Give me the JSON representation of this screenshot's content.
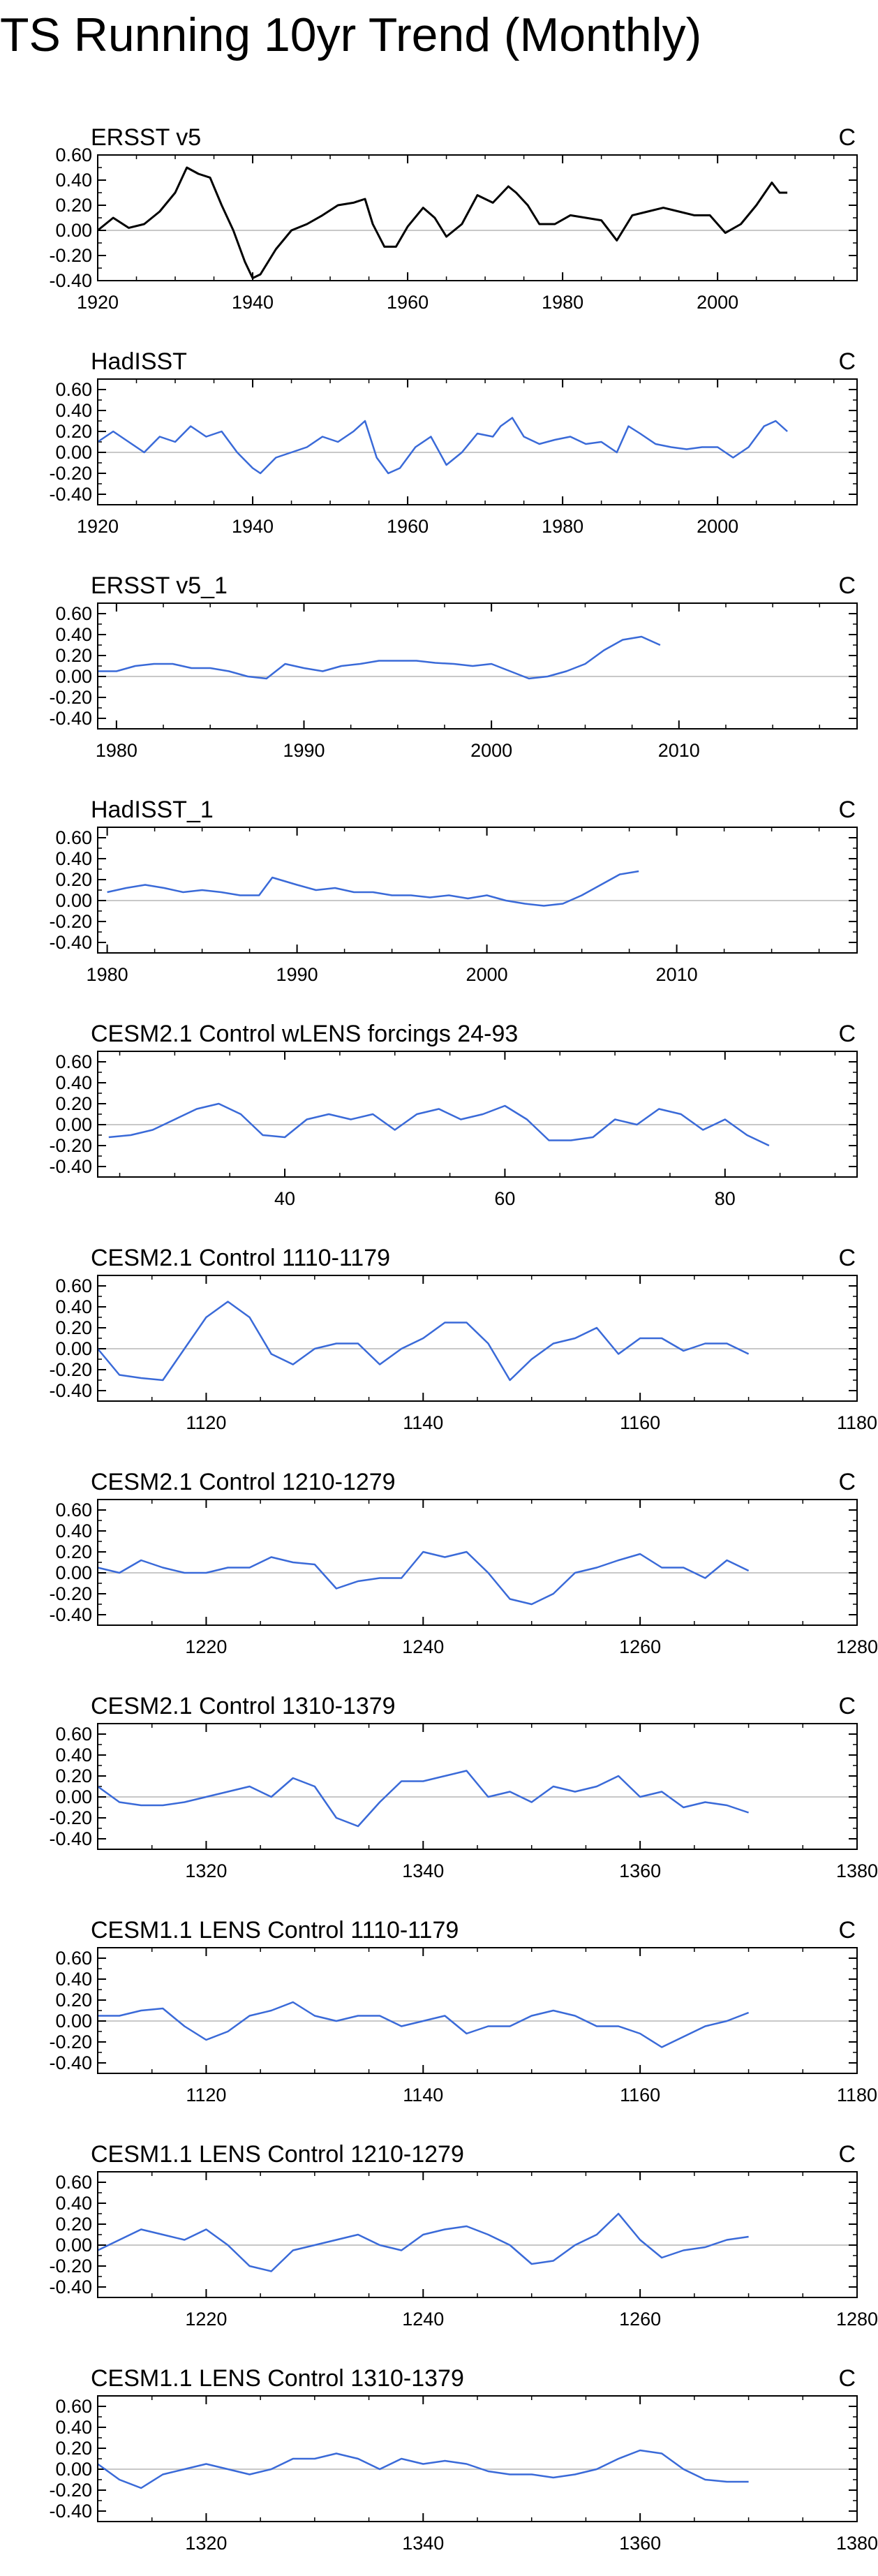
{
  "title": "TS Running 10yr Trend (Monthly)",
  "chart_data": [
    {
      "type": "line",
      "title": "ERSST v5",
      "units": "C",
      "color": "#000000",
      "xlim": [
        1920,
        2018
      ],
      "xticks": [
        1920,
        1940,
        1960,
        1980,
        2000
      ],
      "ylim": [
        -0.4,
        0.6
      ],
      "yticks": [
        -0.4,
        -0.2,
        0.0,
        0.2,
        0.4,
        0.6
      ],
      "ytick_labels": [
        "-0.40",
        "-0.20",
        "0.00",
        "0.20",
        "0.40",
        "0.60"
      ],
      "x": [
        1920,
        1922,
        1924,
        1926,
        1928,
        1930,
        1931.5,
        1933,
        1934.5,
        1936,
        1937.5,
        1939,
        1940,
        1941,
        1943,
        1945,
        1947,
        1949,
        1951,
        1953,
        1954.5,
        1955.5,
        1957,
        1958.5,
        1960,
        1962,
        1963.5,
        1965,
        1967,
        1969,
        1971,
        1973,
        1974,
        1975.5,
        1977,
        1979,
        1981,
        1983,
        1985,
        1987,
        1989,
        1991,
        1993,
        1995,
        1997,
        1999,
        2001,
        2003,
        2005,
        2007,
        2008,
        2009
      ],
      "y": [
        0.0,
        0.1,
        0.02,
        0.05,
        0.15,
        0.3,
        0.5,
        0.45,
        0.42,
        0.2,
        0.0,
        -0.25,
        -0.38,
        -0.35,
        -0.15,
        0.0,
        0.05,
        0.12,
        0.2,
        0.22,
        0.25,
        0.05,
        -0.13,
        -0.13,
        0.03,
        0.18,
        0.1,
        -0.05,
        0.05,
        0.28,
        0.22,
        0.35,
        0.3,
        0.2,
        0.05,
        0.05,
        0.12,
        0.1,
        0.08,
        -0.08,
        0.12,
        0.15,
        0.18,
        0.15,
        0.12,
        0.12,
        -0.02,
        0.05,
        0.2,
        0.38,
        0.3,
        0.3
      ]
    },
    {
      "type": "line",
      "title": "HadISST",
      "units": "C",
      "color": "#3a6ad8",
      "xlim": [
        1920,
        2018
      ],
      "xticks": [
        1920,
        1940,
        1960,
        1980,
        2000
      ],
      "ylim": [
        -0.5,
        0.7
      ],
      "yticks": [
        -0.4,
        -0.2,
        0.0,
        0.2,
        0.4,
        0.6
      ],
      "ytick_labels": [
        "-0.40",
        "-0.20",
        "0.00",
        "0.20",
        "0.40",
        "0.60"
      ],
      "x": [
        1920,
        1922,
        1924,
        1926,
        1928,
        1930,
        1932,
        1934,
        1936,
        1938,
        1940,
        1941,
        1943,
        1945,
        1947,
        1949,
        1951,
        1953,
        1954.5,
        1956,
        1957.5,
        1959,
        1961,
        1963,
        1965,
        1967,
        1969,
        1971,
        1972,
        1973.5,
        1975,
        1977,
        1979,
        1981,
        1983,
        1985,
        1987,
        1988.5,
        1990,
        1992,
        1994,
        1996,
        1998,
        2000,
        2002,
        2004,
        2006,
        2007.5,
        2009
      ],
      "y": [
        0.1,
        0.2,
        0.1,
        0.0,
        0.15,
        0.1,
        0.25,
        0.15,
        0.2,
        0.0,
        -0.15,
        -0.2,
        -0.05,
        0.0,
        0.05,
        0.15,
        0.1,
        0.2,
        0.3,
        -0.05,
        -0.2,
        -0.15,
        0.05,
        0.15,
        -0.12,
        0.0,
        0.18,
        0.15,
        0.25,
        0.33,
        0.15,
        0.08,
        0.12,
        0.15,
        0.08,
        0.1,
        0.0,
        0.25,
        0.18,
        0.08,
        0.05,
        0.03,
        0.05,
        0.05,
        -0.05,
        0.05,
        0.25,
        0.3,
        0.2
      ]
    },
    {
      "type": "line",
      "title": "ERSST v5_1",
      "units": "C",
      "color": "#3a6ad8",
      "xlim": [
        1979,
        2019.5
      ],
      "xticks": [
        1980,
        1990,
        2000,
        2010
      ],
      "ylim": [
        -0.5,
        0.7
      ],
      "yticks": [
        -0.4,
        -0.2,
        0.0,
        0.2,
        0.4,
        0.6
      ],
      "ytick_labels": [
        "-0.40",
        "-0.20",
        "0.00",
        "0.20",
        "0.40",
        "0.60"
      ],
      "x": [
        1979,
        1980,
        1981,
        1982,
        1983,
        1984,
        1985,
        1986,
        1987,
        1988,
        1989,
        1990,
        1991,
        1992,
        1993,
        1994,
        1995,
        1996,
        1997,
        1998,
        1999,
        2000,
        2001,
        2002,
        2003,
        2004,
        2005,
        2006,
        2007,
        2008,
        2009
      ],
      "y": [
        0.05,
        0.05,
        0.1,
        0.12,
        0.12,
        0.08,
        0.08,
        0.05,
        0.0,
        -0.02,
        0.12,
        0.08,
        0.05,
        0.1,
        0.12,
        0.15,
        0.15,
        0.15,
        0.13,
        0.12,
        0.1,
        0.12,
        0.05,
        -0.02,
        0.0,
        0.05,
        0.12,
        0.25,
        0.35,
        0.38,
        0.3
      ]
    },
    {
      "type": "line",
      "title": "HadISST_1",
      "units": "C",
      "color": "#3a6ad8",
      "xlim": [
        1979.5,
        2019.5
      ],
      "xticks": [
        1980,
        1990,
        2000,
        2010
      ],
      "ylim": [
        -0.5,
        0.7
      ],
      "yticks": [
        -0.4,
        -0.2,
        0.0,
        0.2,
        0.4,
        0.6
      ],
      "ytick_labels": [
        "-0.40",
        "-0.20",
        "0.00",
        "0.20",
        "0.40",
        "0.60"
      ],
      "x": [
        1980,
        1981,
        1982,
        1983,
        1984,
        1985,
        1986,
        1987,
        1988,
        1988.7,
        1990,
        1991,
        1992,
        1993,
        1994,
        1995,
        1996,
        1997,
        1998,
        1999,
        2000,
        2001,
        2002,
        2003,
        2004,
        2005,
        2006,
        2007,
        2008
      ],
      "y": [
        0.08,
        0.12,
        0.15,
        0.12,
        0.08,
        0.1,
        0.08,
        0.05,
        0.05,
        0.22,
        0.15,
        0.1,
        0.12,
        0.08,
        0.08,
        0.05,
        0.05,
        0.03,
        0.05,
        0.02,
        0.05,
        0.0,
        -0.03,
        -0.05,
        -0.03,
        0.05,
        0.15,
        0.25,
        0.28
      ]
    },
    {
      "type": "line",
      "title": "CESM2.1 Control wLENS forcings 24-93",
      "units": "C",
      "color": "#3a6ad8",
      "xlim": [
        23,
        92
      ],
      "xticks": [
        40,
        60,
        80
      ],
      "ylim": [
        -0.5,
        0.7
      ],
      "yticks": [
        -0.4,
        -0.2,
        0.0,
        0.2,
        0.4,
        0.6
      ],
      "ytick_labels": [
        "-0.40",
        "-0.20",
        "0.00",
        "0.20",
        "0.40",
        "0.60"
      ],
      "x": [
        24,
        26,
        28,
        30,
        32,
        34,
        36,
        38,
        40,
        42,
        44,
        46,
        48,
        50,
        52,
        54,
        56,
        58,
        60,
        62,
        64,
        66,
        68,
        70,
        72,
        74,
        76,
        78,
        80,
        82,
        84
      ],
      "y": [
        -0.12,
        -0.1,
        -0.05,
        0.05,
        0.15,
        0.2,
        0.1,
        -0.1,
        -0.12,
        0.05,
        0.1,
        0.05,
        0.1,
        -0.05,
        0.1,
        0.15,
        0.05,
        0.1,
        0.18,
        0.05,
        -0.15,
        -0.15,
        -0.12,
        0.05,
        0.0,
        0.15,
        0.1,
        -0.05,
        0.05,
        -0.1,
        -0.2
      ]
    },
    {
      "type": "line",
      "title": "CESM2.1 Control 1110-1179",
      "units": "C",
      "color": "#3a6ad8",
      "xlim": [
        1110,
        1180
      ],
      "xticks": [
        1120,
        1140,
        1160,
        1180
      ],
      "ylim": [
        -0.5,
        0.7
      ],
      "yticks": [
        -0.4,
        -0.2,
        0.0,
        0.2,
        0.4,
        0.6
      ],
      "ytick_labels": [
        "-0.40",
        "-0.20",
        "0.00",
        "0.20",
        "0.40",
        "0.60"
      ],
      "x": [
        1110,
        1112,
        1114,
        1116,
        1118,
        1120,
        1122,
        1124,
        1126,
        1128,
        1130,
        1132,
        1134,
        1136,
        1138,
        1140,
        1142,
        1144,
        1146,
        1148,
        1150,
        1152,
        1154,
        1156,
        1158,
        1160,
        1162,
        1164,
        1166,
        1168,
        1170
      ],
      "y": [
        0.0,
        -0.25,
        -0.28,
        -0.3,
        0.0,
        0.3,
        0.45,
        0.3,
        -0.05,
        -0.15,
        0.0,
        0.05,
        0.05,
        -0.15,
        0.0,
        0.1,
        0.25,
        0.25,
        0.05,
        -0.3,
        -0.1,
        0.05,
        0.1,
        0.2,
        -0.05,
        0.1,
        0.1,
        -0.02,
        0.05,
        0.05,
        -0.05
      ]
    },
    {
      "type": "line",
      "title": "CESM2.1 Control 1210-1279",
      "units": "C",
      "color": "#3a6ad8",
      "xlim": [
        1210,
        1280
      ],
      "xticks": [
        1220,
        1240,
        1260,
        1280
      ],
      "ylim": [
        -0.5,
        0.7
      ],
      "yticks": [
        -0.4,
        -0.2,
        0.0,
        0.2,
        0.4,
        0.6
      ],
      "ytick_labels": [
        "-0.40",
        "-0.20",
        "0.00",
        "0.20",
        "0.40",
        "0.60"
      ],
      "x": [
        1210,
        1212,
        1214,
        1216,
        1218,
        1220,
        1222,
        1224,
        1226,
        1228,
        1230,
        1232,
        1234,
        1236,
        1238,
        1240,
        1242,
        1244,
        1246,
        1248,
        1250,
        1252,
        1254,
        1256,
        1258,
        1260,
        1262,
        1264,
        1266,
        1268,
        1270
      ],
      "y": [
        0.05,
        0.0,
        0.12,
        0.05,
        0.0,
        0.0,
        0.05,
        0.05,
        0.15,
        0.1,
        0.08,
        -0.15,
        -0.08,
        -0.05,
        -0.05,
        0.2,
        0.15,
        0.2,
        0.0,
        -0.25,
        -0.3,
        -0.2,
        0.0,
        0.05,
        0.12,
        0.18,
        0.05,
        0.05,
        -0.05,
        0.12,
        0.02
      ]
    },
    {
      "type": "line",
      "title": "CESM2.1 Control 1310-1379",
      "units": "C",
      "color": "#3a6ad8",
      "xlim": [
        1310,
        1380
      ],
      "xticks": [
        1320,
        1340,
        1360,
        1380
      ],
      "ylim": [
        -0.5,
        0.7
      ],
      "yticks": [
        -0.4,
        -0.2,
        0.0,
        0.2,
        0.4,
        0.6
      ],
      "ytick_labels": [
        "-0.40",
        "-0.20",
        "0.00",
        "0.20",
        "0.40",
        "0.60"
      ],
      "x": [
        1310,
        1312,
        1314,
        1316,
        1318,
        1320,
        1322,
        1324,
        1326,
        1328,
        1330,
        1332,
        1334,
        1336,
        1338,
        1340,
        1342,
        1344,
        1346,
        1348,
        1350,
        1352,
        1354,
        1356,
        1358,
        1360,
        1362,
        1364,
        1366,
        1368,
        1370
      ],
      "y": [
        0.1,
        -0.05,
        -0.08,
        -0.08,
        -0.05,
        0.0,
        0.05,
        0.1,
        0.0,
        0.18,
        0.1,
        -0.2,
        -0.28,
        -0.05,
        0.15,
        0.15,
        0.2,
        0.25,
        0.0,
        0.05,
        -0.05,
        0.1,
        0.05,
        0.1,
        0.2,
        0.0,
        0.05,
        -0.1,
        -0.05,
        -0.08,
        -0.15
      ]
    },
    {
      "type": "line",
      "title": "CESM1.1 LENS Control 1110-1179",
      "units": "C",
      "color": "#3a6ad8",
      "xlim": [
        1110,
        1180
      ],
      "xticks": [
        1120,
        1140,
        1160,
        1180
      ],
      "ylim": [
        -0.5,
        0.7
      ],
      "yticks": [
        -0.4,
        -0.2,
        0.0,
        0.2,
        0.4,
        0.6
      ],
      "ytick_labels": [
        "-0.40",
        "-0.20",
        "0.00",
        "0.20",
        "0.40",
        "0.60"
      ],
      "x": [
        1110,
        1112,
        1114,
        1116,
        1118,
        1120,
        1122,
        1124,
        1126,
        1128,
        1130,
        1132,
        1134,
        1136,
        1138,
        1140,
        1142,
        1144,
        1146,
        1148,
        1150,
        1152,
        1154,
        1156,
        1158,
        1160,
        1162,
        1164,
        1166,
        1168,
        1170
      ],
      "y": [
        0.05,
        0.05,
        0.1,
        0.12,
        -0.05,
        -0.18,
        -0.1,
        0.05,
        0.1,
        0.18,
        0.05,
        0.0,
        0.05,
        0.05,
        -0.05,
        0.0,
        0.05,
        -0.12,
        -0.05,
        -0.05,
        0.05,
        0.1,
        0.05,
        -0.05,
        -0.05,
        -0.12,
        -0.25,
        -0.15,
        -0.05,
        0.0,
        0.08
      ]
    },
    {
      "type": "line",
      "title": "CESM1.1 LENS Control 1210-1279",
      "units": "C",
      "color": "#3a6ad8",
      "xlim": [
        1210,
        1280
      ],
      "xticks": [
        1220,
        1240,
        1260,
        1280
      ],
      "ylim": [
        -0.5,
        0.7
      ],
      "yticks": [
        -0.4,
        -0.2,
        0.0,
        0.2,
        0.4,
        0.6
      ],
      "ytick_labels": [
        "-0.40",
        "-0.20",
        "0.00",
        "0.20",
        "0.40",
        "0.60"
      ],
      "x": [
        1210,
        1212,
        1214,
        1216,
        1218,
        1220,
        1222,
        1224,
        1226,
        1228,
        1230,
        1232,
        1234,
        1236,
        1238,
        1240,
        1242,
        1244,
        1246,
        1248,
        1250,
        1252,
        1254,
        1256,
        1258,
        1260,
        1262,
        1264,
        1266,
        1268,
        1270
      ],
      "y": [
        -0.05,
        0.05,
        0.15,
        0.1,
        0.05,
        0.15,
        0.0,
        -0.2,
        -0.25,
        -0.05,
        0.0,
        0.05,
        0.1,
        0.0,
        -0.05,
        0.1,
        0.15,
        0.18,
        0.1,
        0.0,
        -0.18,
        -0.15,
        0.0,
        0.1,
        0.3,
        0.05,
        -0.12,
        -0.05,
        -0.02,
        0.05,
        0.08
      ]
    },
    {
      "type": "line",
      "title": "CESM1.1 LENS Control 1310-1379",
      "units": "C",
      "color": "#3a6ad8",
      "xlim": [
        1310,
        1380
      ],
      "xticks": [
        1320,
        1340,
        1360,
        1380
      ],
      "ylim": [
        -0.5,
        0.7
      ],
      "yticks": [
        -0.4,
        -0.2,
        0.0,
        0.2,
        0.4,
        0.6
      ],
      "ytick_labels": [
        "-0.40",
        "-0.20",
        "0.00",
        "0.20",
        "0.40",
        "0.60"
      ],
      "x": [
        1310,
        1312,
        1314,
        1316,
        1318,
        1320,
        1322,
        1324,
        1326,
        1328,
        1330,
        1332,
        1334,
        1336,
        1338,
        1340,
        1342,
        1344,
        1346,
        1348,
        1350,
        1352,
        1354,
        1356,
        1358,
        1360,
        1362,
        1364,
        1366,
        1368,
        1370
      ],
      "y": [
        0.05,
        -0.1,
        -0.18,
        -0.05,
        0.0,
        0.05,
        0.0,
        -0.05,
        0.0,
        0.1,
        0.1,
        0.15,
        0.1,
        0.0,
        0.1,
        0.05,
        0.08,
        0.05,
        -0.02,
        -0.05,
        -0.05,
        -0.08,
        -0.05,
        0.0,
        0.1,
        0.18,
        0.15,
        0.0,
        -0.1,
        -0.12,
        -0.12
      ]
    }
  ]
}
